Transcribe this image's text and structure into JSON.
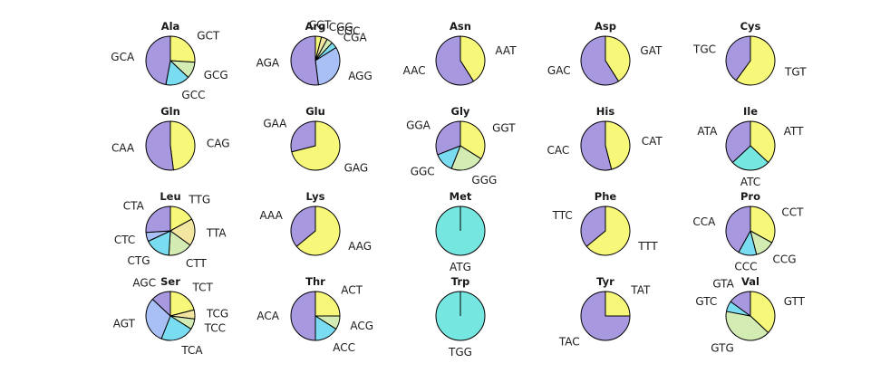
{
  "chart_data": {
    "type": "pie",
    "slice_colors": {
      "purple": "#a898e0",
      "yellow": "#f7f77a",
      "lightgreen": "#d2ecb4",
      "cyan": "#7adcf0",
      "periwinkle": "#a9c0f6",
      "turquoise": "#76e6e0",
      "tan": "#f3e6a0"
    },
    "edge_color": "#000000",
    "charts": [
      {
        "title": "Ala",
        "slices": [
          {
            "label": "GCT",
            "value": 0.26,
            "color": "yellow"
          },
          {
            "label": "GCG",
            "value": 0.11,
            "color": "lightgreen"
          },
          {
            "label": "GCC",
            "value": 0.16,
            "color": "cyan"
          },
          {
            "label": "GCA",
            "value": 0.47,
            "color": "purple"
          }
        ]
      },
      {
        "title": "Arg",
        "slices": [
          {
            "label": "CGT",
            "value": 0.04,
            "color": "yellow"
          },
          {
            "label": "CGG",
            "value": 0.04,
            "color": "tan"
          },
          {
            "label": "CGC",
            "value": 0.04,
            "color": "lightgreen"
          },
          {
            "label": "CGA",
            "value": 0.04,
            "color": "cyan"
          },
          {
            "label": "AGG",
            "value": 0.32,
            "color": "periwinkle"
          },
          {
            "label": "AGA",
            "value": 0.52,
            "color": "purple"
          }
        ]
      },
      {
        "title": "Asn",
        "slices": [
          {
            "label": "AAT",
            "value": 0.41,
            "color": "yellow"
          },
          {
            "label": "AAC",
            "value": 0.59,
            "color": "purple"
          }
        ]
      },
      {
        "title": "Asp",
        "slices": [
          {
            "label": "GAT",
            "value": 0.41,
            "color": "yellow"
          },
          {
            "label": "GAC",
            "value": 0.59,
            "color": "purple"
          }
        ]
      },
      {
        "title": "Cys",
        "slices": [
          {
            "label": "TGT",
            "value": 0.6,
            "color": "yellow"
          },
          {
            "label": "TGC",
            "value": 0.4,
            "color": "purple"
          }
        ]
      },
      {
        "title": "Gln",
        "slices": [
          {
            "label": "CAG",
            "value": 0.48,
            "color": "yellow"
          },
          {
            "label": "CAA",
            "value": 0.52,
            "color": "purple"
          }
        ]
      },
      {
        "title": "Glu",
        "slices": [
          {
            "label": "GAG",
            "value": 0.71,
            "color": "yellow"
          },
          {
            "label": "GAA",
            "value": 0.29,
            "color": "purple"
          }
        ]
      },
      {
        "title": "Gly",
        "slices": [
          {
            "label": "GGT",
            "value": 0.34,
            "color": "yellow"
          },
          {
            "label": "GGG",
            "value": 0.22,
            "color": "lightgreen"
          },
          {
            "label": "GGC",
            "value": 0.13,
            "color": "cyan"
          },
          {
            "label": "GGA",
            "value": 0.31,
            "color": "purple"
          }
        ]
      },
      {
        "title": "His",
        "slices": [
          {
            "label": "CAT",
            "value": 0.46,
            "color": "yellow"
          },
          {
            "label": "CAC",
            "value": 0.54,
            "color": "purple"
          }
        ]
      },
      {
        "title": "Ile",
        "slices": [
          {
            "label": "ATT",
            "value": 0.37,
            "color": "yellow"
          },
          {
            "label": "ATC",
            "value": 0.26,
            "color": "turquoise"
          },
          {
            "label": "ATA",
            "value": 0.37,
            "color": "purple"
          }
        ]
      },
      {
        "title": "Leu",
        "slices": [
          {
            "label": "TTG",
            "value": 0.17,
            "color": "yellow"
          },
          {
            "label": "TTA",
            "value": 0.18,
            "color": "tan"
          },
          {
            "label": "CTT",
            "value": 0.16,
            "color": "lightgreen"
          },
          {
            "label": "CTG",
            "value": 0.17,
            "color": "cyan"
          },
          {
            "label": "CTC",
            "value": 0.06,
            "color": "periwinkle"
          },
          {
            "label": "CTA",
            "value": 0.26,
            "color": "purple"
          }
        ]
      },
      {
        "title": "Lys",
        "slices": [
          {
            "label": "AAG",
            "value": 0.64,
            "color": "yellow"
          },
          {
            "label": "AAA",
            "value": 0.36,
            "color": "purple"
          }
        ]
      },
      {
        "title": "Met",
        "slices": [
          {
            "label": "ATG",
            "value": 1.0,
            "color": "turquoise"
          }
        ]
      },
      {
        "title": "Phe",
        "slices": [
          {
            "label": "TTT",
            "value": 0.64,
            "color": "yellow"
          },
          {
            "label": "TTC",
            "value": 0.36,
            "color": "purple"
          }
        ]
      },
      {
        "title": "Pro",
        "slices": [
          {
            "label": "CCT",
            "value": 0.33,
            "color": "yellow"
          },
          {
            "label": "CCG",
            "value": 0.13,
            "color": "lightgreen"
          },
          {
            "label": "CCC",
            "value": 0.12,
            "color": "cyan"
          },
          {
            "label": "CCA",
            "value": 0.42,
            "color": "purple"
          }
        ]
      },
      {
        "title": "Ser",
        "slices": [
          {
            "label": "TCT",
            "value": 0.21,
            "color": "yellow"
          },
          {
            "label": "TCG",
            "value": 0.06,
            "color": "tan"
          },
          {
            "label": "TCC",
            "value": 0.07,
            "color": "lightgreen"
          },
          {
            "label": "TCA",
            "value": 0.22,
            "color": "cyan"
          },
          {
            "label": "AGT",
            "value": 0.31,
            "color": "periwinkle"
          },
          {
            "label": "AGC",
            "value": 0.13,
            "color": "purple"
          }
        ]
      },
      {
        "title": "Thr",
        "slices": [
          {
            "label": "ACT",
            "value": 0.25,
            "color": "yellow"
          },
          {
            "label": "ACG",
            "value": 0.09,
            "color": "lightgreen"
          },
          {
            "label": "ACC",
            "value": 0.16,
            "color": "cyan"
          },
          {
            "label": "ACA",
            "value": 0.5,
            "color": "purple"
          }
        ]
      },
      {
        "title": "Trp",
        "slices": [
          {
            "label": "TGG",
            "value": 1.0,
            "color": "turquoise"
          }
        ]
      },
      {
        "title": "Tyr",
        "slices": [
          {
            "label": "TAT",
            "value": 0.25,
            "color": "yellow"
          },
          {
            "label": "TAC",
            "value": 0.75,
            "color": "purple"
          }
        ]
      },
      {
        "title": "Val",
        "slices": [
          {
            "label": "GTT",
            "value": 0.37,
            "color": "yellow"
          },
          {
            "label": "GTG",
            "value": 0.41,
            "color": "lightgreen"
          },
          {
            "label": "GTC",
            "value": 0.07,
            "color": "cyan"
          },
          {
            "label": "GTA",
            "value": 0.15,
            "color": "purple"
          }
        ]
      }
    ]
  }
}
